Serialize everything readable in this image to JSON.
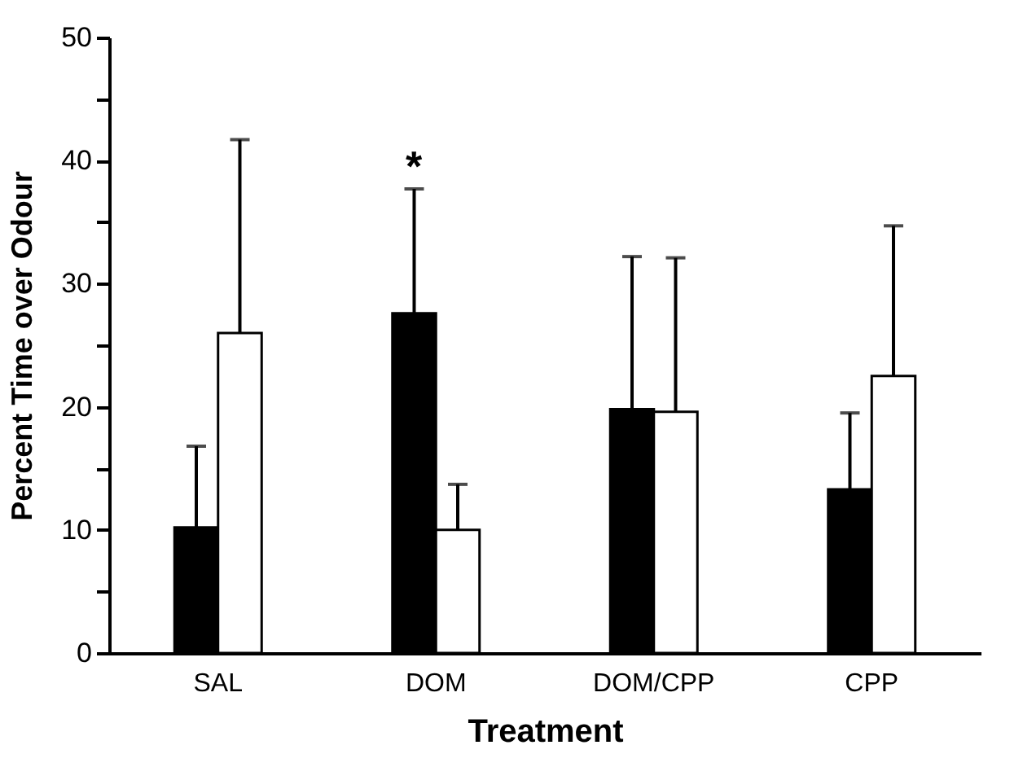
{
  "chart_data": {
    "type": "bar",
    "xlabel": "Treatment",
    "ylabel": "Percent Time over Odour",
    "categories": [
      "SAL",
      "DOM",
      "DOM/CPP",
      "CPP"
    ],
    "series": [
      {
        "color": "#000000",
        "values": [
          10.2,
          27.6,
          19.8,
          13.3
        ],
        "errors": [
          [
            10.2,
            16.8
          ],
          [
            27.6,
            37.7
          ],
          [
            19.8,
            32.2
          ],
          [
            13.3,
            19.5
          ]
        ]
      },
      {
        "color": "#ffffff",
        "values": [
          26.0,
          10.0,
          19.6,
          22.5
        ],
        "errors": [
          [
            26.0,
            41.7
          ],
          [
            10.0,
            13.7
          ],
          [
            19.6,
            32.1
          ],
          [
            22.5,
            34.7
          ]
        ]
      }
    ],
    "ylim": [
      0,
      50
    ],
    "yticks": [
      0,
      {
        "value": 5,
        "label": null
      },
      10,
      {
        "value": 15,
        "label": null
      },
      20,
      {
        "value": 25,
        "label": null
      },
      30,
      {
        "value": 35,
        "label": null
      },
      40,
      {
        "value": 45,
        "label": null
      },
      50
    ],
    "annotations": [
      "*"
    ],
    "grid": false
  }
}
